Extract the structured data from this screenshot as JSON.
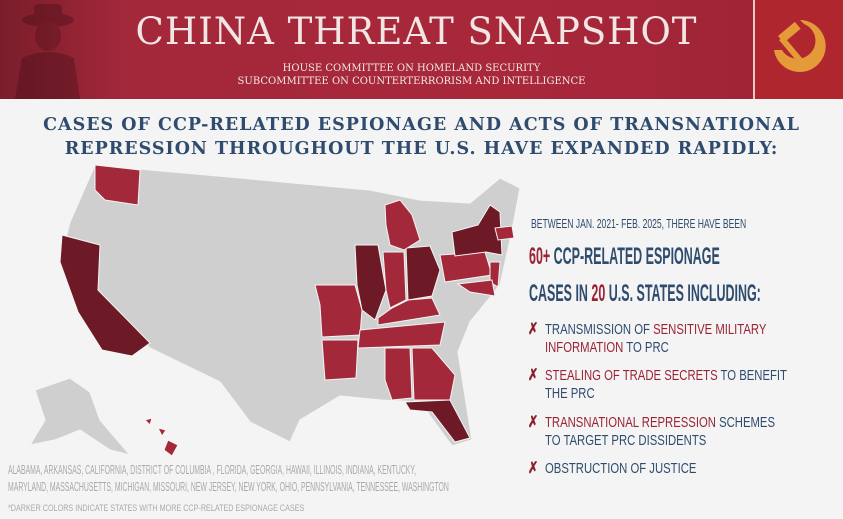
{
  "banner": {
    "title": "CHINA THREAT SNAPSHOT",
    "subtitle_1": "HOUSE COMMITTEE ON HOMELAND SECURITY",
    "subtitle_2": "SUBCOMMITTEE ON COUNTERTERRORISM AND INTELLIGENCE",
    "emblem_icon": "hammer-and-sickle-icon",
    "colors": {
      "banner": "#a8283a",
      "emblem": "#e59a3a"
    }
  },
  "headline": {
    "line_1": "CASES OF CCP-RELATED ESPIONAGE AND ACTS OF TRANSNATIONAL",
    "line_2": "REPRESSION THROUGHOUT THE U.S. HAVE EXPANDED RAPIDLY:"
  },
  "map": {
    "base_color": "#cfcfcf",
    "colors": {
      "medium": "#a3283a",
      "dark": "#6e1a26"
    },
    "states": [
      {
        "name": "Washington",
        "level": "medium"
      },
      {
        "name": "California",
        "level": "dark"
      },
      {
        "name": "Missouri",
        "level": "medium"
      },
      {
        "name": "Arkansas",
        "level": "medium"
      },
      {
        "name": "Illinois",
        "level": "dark"
      },
      {
        "name": "Indiana",
        "level": "medium"
      },
      {
        "name": "Ohio",
        "level": "dark"
      },
      {
        "name": "Michigan",
        "level": "medium"
      },
      {
        "name": "Kentucky",
        "level": "medium"
      },
      {
        "name": "Tennessee",
        "level": "medium"
      },
      {
        "name": "Alabama",
        "level": "medium"
      },
      {
        "name": "Georgia",
        "level": "medium"
      },
      {
        "name": "Florida",
        "level": "dark"
      },
      {
        "name": "Pennsylvania",
        "level": "medium"
      },
      {
        "name": "New York",
        "level": "dark"
      },
      {
        "name": "New Jersey",
        "level": "medium"
      },
      {
        "name": "Maryland",
        "level": "medium"
      },
      {
        "name": "Massachusetts",
        "level": "medium"
      },
      {
        "name": "Hawaii",
        "level": "medium"
      }
    ]
  },
  "stats": {
    "intro": "BETWEEN JAN. 2021- FEB. 2025, THERE HAVE BEEN",
    "count": "60+",
    "line_1_rest": " CCP-RELATED ESPIONAGE",
    "line_2_pre": "CASES IN ",
    "states_count": "20",
    "line_2_rest": " U.S. STATES INCLUDING:",
    "bullet_icon": "x-mark-icon",
    "items": [
      {
        "pre": "TRANSMISSION OF ",
        "highlight": "SENSITIVE MILITARY",
        "line2_highlight": "INFORMATION",
        "post": " TO PRC"
      },
      {
        "pre": "",
        "highlight": "STEALING OF TRADE SECRETS",
        "post": " TO BENEFIT",
        "line2": "THE PRC"
      },
      {
        "pre": "",
        "highlight": "TRANSNATIONAL REPRESSION",
        "post": " SCHEMES",
        "line2": "TO TARGET PRC DISSIDENTS"
      },
      {
        "pre": "OBSTRUCTION OF JUSTICE"
      }
    ]
  },
  "footer": {
    "states_line_1": "ALABAMA, ARKANSAS, CALIFORNIA, DISTRICT OF COLUMBIA , FLORIDA, GEORGIA, HAWAII, ILLINOIS, INDIANA, KENTUCKY,",
    "states_line_2": "MARYLAND, MASSACHUSETTS, MICHIGAN, MISSOURI, NEW JERSEY, NEW YORK, OHIO, PENNSYLVANIA, TENNESSEE, WASHINGTON",
    "note": "*DARKER COLORS INDICATE STATES WITH MORE CCP-RELATED ESPIONAGE CASES"
  }
}
